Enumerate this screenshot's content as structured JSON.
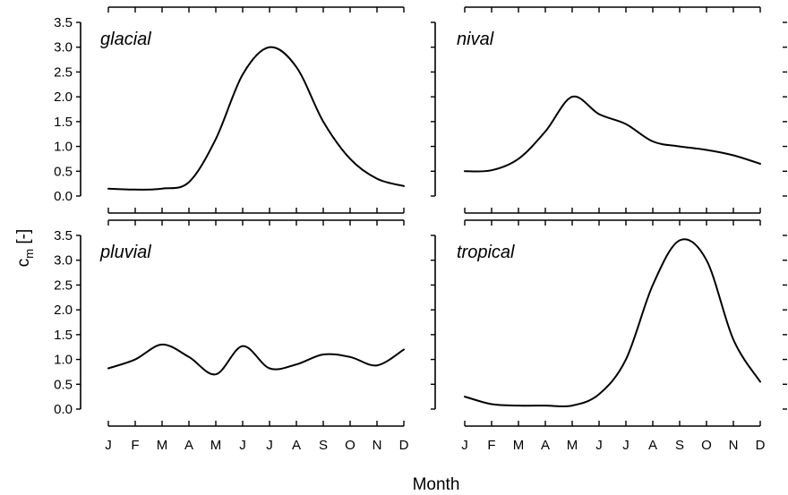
{
  "chart_data": {
    "type": "line",
    "layout": "2x2 small multiples",
    "xlabel": "Month",
    "ylabel": "c_m [-]",
    "ylabel_main": "c",
    "ylabel_sub": "m",
    "ylabel_rest": " [-]",
    "categories": [
      "J",
      "F",
      "M",
      "A",
      "M",
      "J",
      "J",
      "A",
      "S",
      "O",
      "N",
      "D"
    ],
    "ylim": [
      0,
      3.5
    ],
    "yticks": [
      "0.0",
      "0.5",
      "1.0",
      "1.5",
      "2.0",
      "2.5",
      "3.0",
      "3.5"
    ],
    "grid": false,
    "panels": [
      {
        "title": "glacial",
        "values": [
          0.15,
          0.13,
          0.15,
          0.28,
          1.15,
          2.45,
          3.0,
          2.6,
          1.5,
          0.75,
          0.35,
          0.2
        ]
      },
      {
        "title": "nival",
        "values": [
          0.5,
          0.52,
          0.75,
          1.3,
          2.0,
          1.65,
          1.45,
          1.1,
          1.0,
          0.93,
          0.82,
          0.65
        ]
      },
      {
        "title": "pluvial",
        "values": [
          0.82,
          1.0,
          1.3,
          1.05,
          0.7,
          1.27,
          0.82,
          0.9,
          1.1,
          1.05,
          0.88,
          1.2
        ]
      },
      {
        "title": "tropical",
        "values": [
          0.25,
          0.1,
          0.07,
          0.07,
          0.07,
          0.3,
          1.0,
          2.5,
          3.4,
          3.0,
          1.4,
          0.55
        ]
      }
    ]
  }
}
